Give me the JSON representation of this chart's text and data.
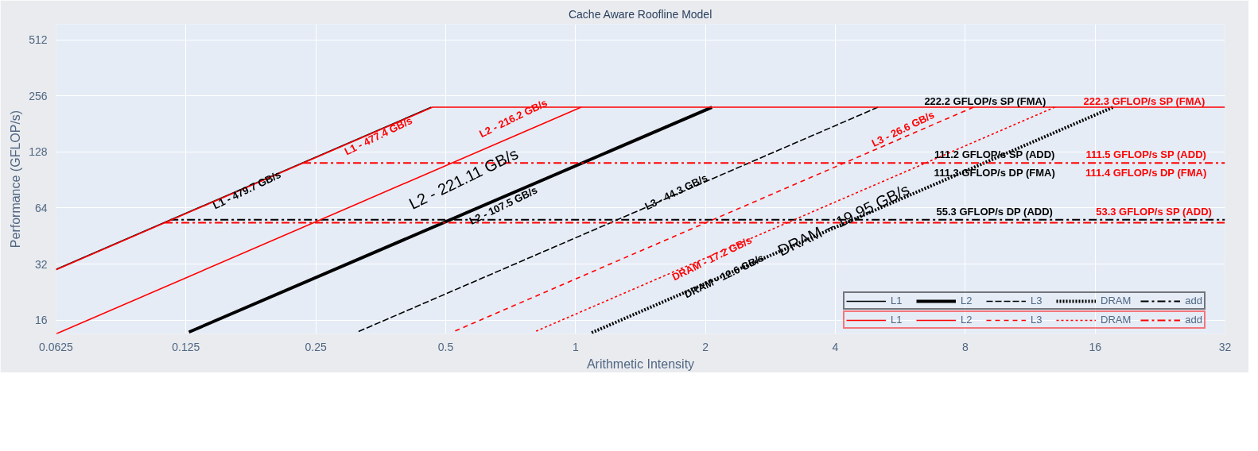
{
  "chart_data": {
    "type": "line",
    "title": "Cache Aware Roofline Model",
    "xlabel": "Arithmetic Intensity",
    "ylabel": "Performance (GFLOP/s)",
    "log": "xy",
    "grid": true,
    "legend": "bottom right",
    "xlim": [
      0.0625,
      32
    ],
    "ylim": [
      13.5,
      620
    ],
    "xticks": [
      0.0625,
      0.125,
      0.25,
      0.5,
      1,
      2,
      4,
      8,
      16,
      32
    ],
    "yticks": [
      16,
      32,
      64,
      128,
      256,
      512
    ],
    "series": [
      {
        "name": "L1",
        "color": "#000000",
        "line_style": "solid",
        "x": [
          0.0625,
          0.463
        ],
        "values": [
          29.98,
          222.2
        ]
      },
      {
        "name": "L2",
        "color": "#000000",
        "line_style": "solid",
        "x": [
          0.127,
          2.07
        ],
        "values": [
          13.8,
          222.2
        ]
      },
      {
        "name": "L3",
        "color": "#000000",
        "line_style": "dashed",
        "x": [
          0.314,
          5.02
        ],
        "values": [
          13.9,
          222.2
        ]
      },
      {
        "name": "DRAM",
        "color": "#000000",
        "line_style": "dotted",
        "x": [
          1.09,
          17.6
        ],
        "values": [
          13.7,
          222.2
        ]
      },
      {
        "name": "add",
        "color": "#000000",
        "line_style": "dashdot",
        "x": [
          0.115,
          32
        ],
        "values": [
          55.3,
          55.3
        ]
      },
      {
        "name": "L1",
        "color": "#ff0000",
        "line_style": "solid",
        "x": [
          0.0625,
          0.466,
          32
        ],
        "values": [
          29.84,
          222.3,
          222.3
        ]
      },
      {
        "name": "L2",
        "color": "#ff0000",
        "line_style": "solid",
        "x": [
          0.0625,
          1.03
        ],
        "values": [
          13.5,
          222.3
        ]
      },
      {
        "name": "L3",
        "color": "#ff0000",
        "line_style": "dashed",
        "x": [
          0.526,
          8.36
        ],
        "values": [
          14.0,
          222.3
        ]
      },
      {
        "name": "DRAM",
        "color": "#ff0000",
        "line_style": "dotted",
        "x": [
          0.81,
          12.9
        ],
        "values": [
          13.96,
          222.3
        ]
      },
      {
        "name": "add",
        "color": "#ff0000",
        "line_style": "dashdot",
        "x": [
          0.2335,
          32,
          1,
          0.1116,
          32
        ],
        "values": [
          111.5,
          111.5,
          null,
          53.3,
          53.3
        ]
      }
    ],
    "annotations": [
      "L1 - 479.7 GB/s",
      "L1 - 477.4 GB/s",
      "L2 - 216.2 GB/s",
      "L2 - 107.5 GB/s",
      "L2 - 221.11 GB/s",
      "L3 - 44.3 GB/s",
      "L3 - 26.6 GB/s",
      "DRAM - 17.2 GB/s",
      "DRAM - 12.6 GB/s",
      "DRAM – 19.95 GB/s",
      "222.2 GFLOP/s SP (FMA)",
      "222.3 GFLOP/s SP (FMA)",
      "111.2 GFLOP/s SP (ADD)",
      "111.5 GFLOP/s SP (ADD)",
      "111.3 GFLOP/s DP (FMA)",
      "111.4 GFLOP/s DP (FMA)",
      "55.3 GFLOP/s DP (ADD)",
      "53.3 GFLOP/s SP (ADD)"
    ]
  }
}
